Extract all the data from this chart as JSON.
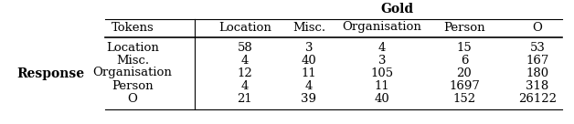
{
  "gold_label": "Gold",
  "col_headers": [
    "Tokens",
    "Location",
    "Misc.",
    "Organisation",
    "Person",
    "O"
  ],
  "row_label": "Response",
  "row_names": [
    "Location",
    "Misc.",
    "Organisation",
    "Person",
    "O"
  ],
  "table_data": [
    [
      58,
      3,
      4,
      15,
      53
    ],
    [
      4,
      40,
      3,
      6,
      167
    ],
    [
      12,
      11,
      105,
      20,
      180
    ],
    [
      4,
      4,
      11,
      1697,
      318
    ],
    [
      21,
      39,
      40,
      152,
      26122
    ]
  ],
  "figsize": [
    6.28,
    1.36
  ],
  "dpi": 100
}
